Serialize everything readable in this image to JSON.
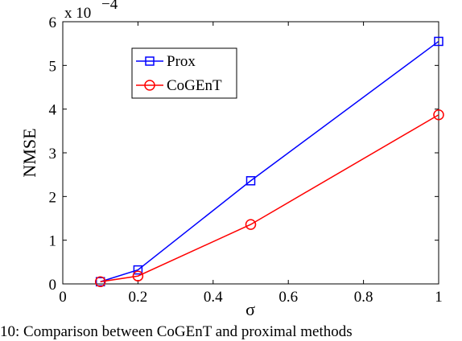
{
  "chart_data": {
    "type": "line",
    "xlabel": "σ",
    "ylabel": "NMSE",
    "xlim": [
      0,
      1
    ],
    "ylim": [
      0,
      6
    ],
    "x_ticks": [
      "0",
      "0.2",
      "0.4",
      "0.6",
      "0.8",
      "1"
    ],
    "y_ticks": [
      "0",
      "1",
      "2",
      "3",
      "4",
      "5",
      "6"
    ],
    "y_multiplier": {
      "base": "x 10",
      "exponent": "−4"
    },
    "grid": false,
    "legend_position": "upper-left",
    "series": [
      {
        "name": "Prox",
        "color": "#0000ff",
        "marker": "square",
        "x": [
          0.1,
          0.2,
          0.5,
          1.0
        ],
        "y": [
          0.05,
          0.32,
          2.36,
          5.55
        ]
      },
      {
        "name": "CoGEnT",
        "color": "#ff0000",
        "marker": "circle",
        "x": [
          0.1,
          0.2,
          0.5,
          1.0
        ],
        "y": [
          0.05,
          0.18,
          1.36,
          3.87
        ]
      }
    ]
  },
  "caption_fragment": "10:    Comparison between CoGEnT and proximal methods"
}
